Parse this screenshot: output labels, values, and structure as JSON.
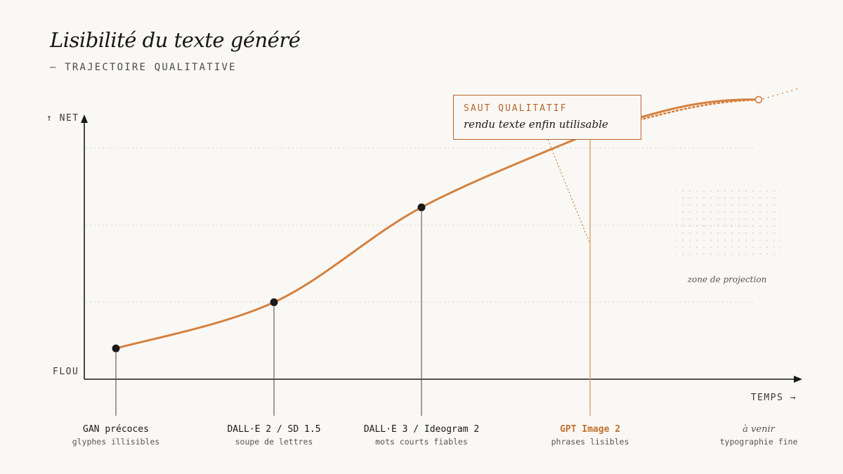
{
  "header": {
    "title": "Lisibilité du texte généré",
    "subtitle": "— TRAJECTOIRE QUALITATIVE"
  },
  "axes": {
    "y_top_label": "↑ NET",
    "y_bottom_label": "FLOU",
    "x_label": "TEMPS →"
  },
  "callout": {
    "title": "SAUT QUALITATIF",
    "text": "rendu texte enfin utilisable"
  },
  "projection_label": "zone de projection",
  "colors": {
    "background": "#faf8f4",
    "accent": "#d4813f",
    "accent_dark": "#b5652c",
    "ink": "#1a1a1a"
  },
  "chart_data": {
    "type": "line",
    "title": "Lisibilité du texte généré",
    "subtitle": "— TRAJECTOIRE QUALITATIVE",
    "xlabel": "TEMPS →",
    "ylabel": "↑ NET",
    "ylim": [
      0,
      100
    ],
    "grid": "dotted horizontal",
    "points": [
      {
        "name": "GAN précoces",
        "caption": "glyphes illisibles",
        "x": 0,
        "y": 12,
        "highlight": false,
        "projected": false
      },
      {
        "name": "DALL·E 2 / SD 1.5",
        "caption": "soupe de lettres",
        "x": 1,
        "y": 30,
        "highlight": false,
        "projected": false
      },
      {
        "name": "DALL·E 3 / Ideogram 2",
        "caption": "mots courts fiables",
        "x": 2,
        "y": 67,
        "highlight": false,
        "projected": false
      },
      {
        "name": "GPT Image 2",
        "caption": "phrases lisibles",
        "x": 3,
        "y": 96,
        "highlight": true,
        "projected": false
      },
      {
        "name": "à venir",
        "caption": "typographie fine",
        "x": 4,
        "y": 109,
        "highlight": false,
        "projected": true
      }
    ]
  }
}
